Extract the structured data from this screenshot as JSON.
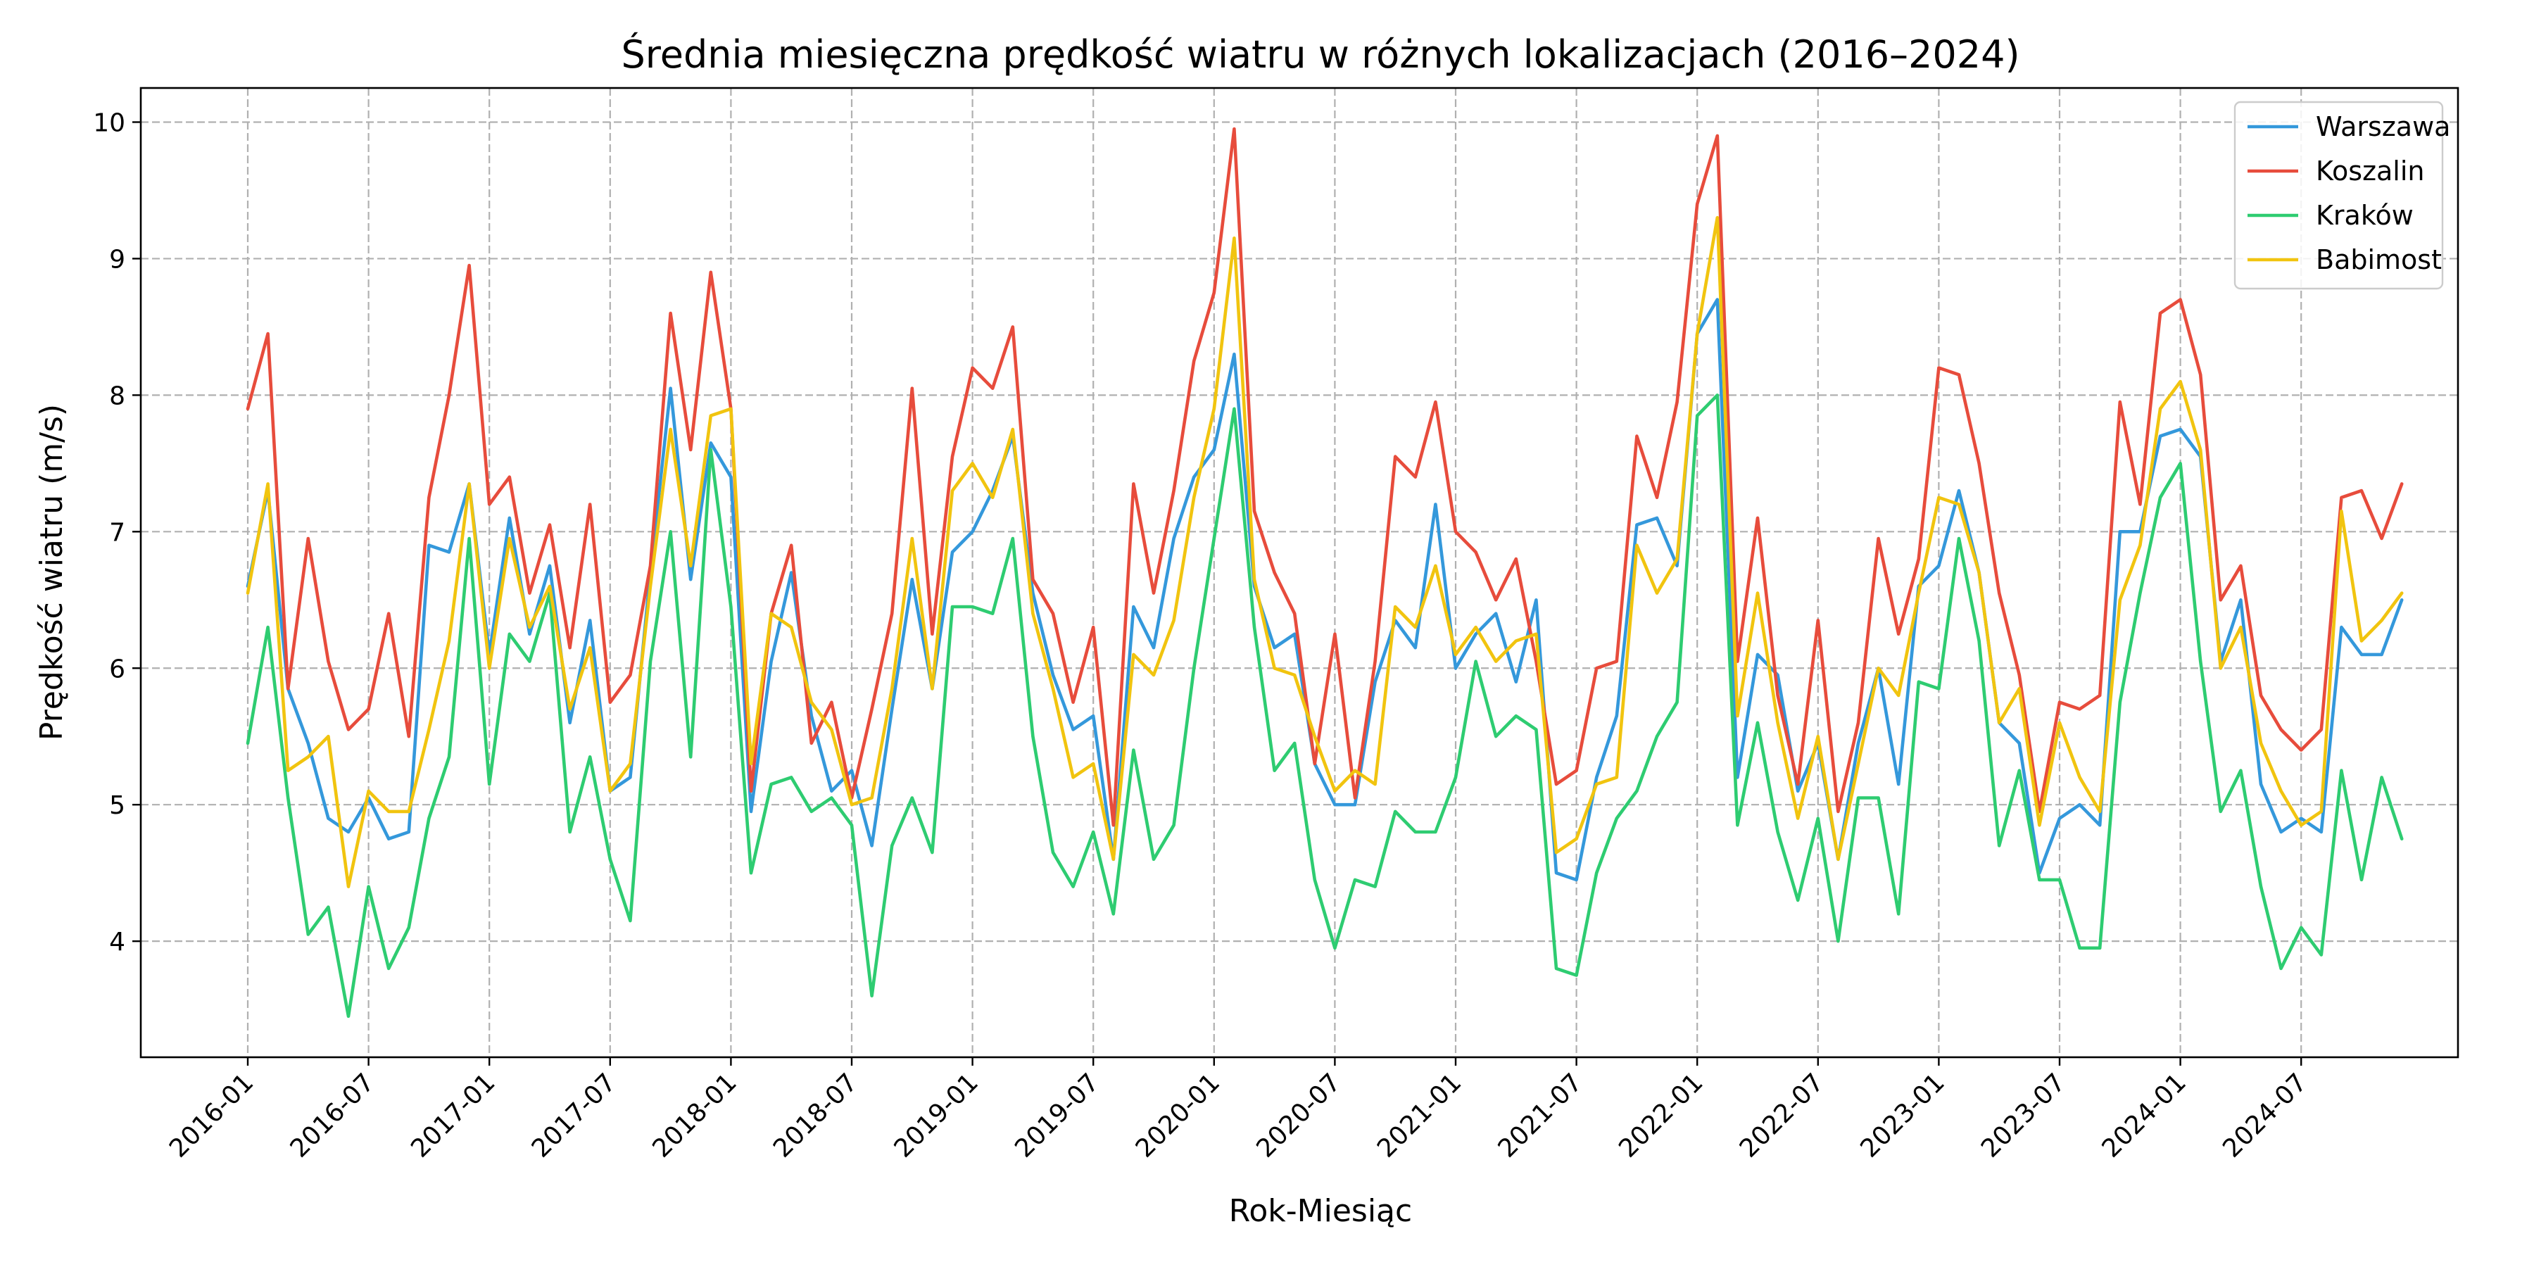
{
  "chart_data": {
    "type": "line",
    "title": "Średnia miesięczna prędkość wiatru w różnych lokalizacjach (2016–2024)",
    "xlabel": "Rok-Miesiąc",
    "ylabel": "Prędkość wiatru (m/s)",
    "x_start": "2016-01",
    "x_ticks": [
      "2016-01",
      "2016-07",
      "2017-01",
      "2017-07",
      "2018-01",
      "2018-07",
      "2019-01",
      "2019-07",
      "2020-01",
      "2020-07",
      "2021-01",
      "2021-07",
      "2022-01",
      "2022-07",
      "2023-01",
      "2023-07",
      "2024-01",
      "2024-07"
    ],
    "y_ticks": [
      4,
      5,
      6,
      7,
      8,
      9,
      10
    ],
    "ylim": [
      3.15,
      10.25
    ],
    "grid": true,
    "legend_position": "top-right",
    "series": [
      {
        "name": "Warszawa",
        "color": "#3498db",
        "values": [
          6.6,
          7.3,
          5.85,
          5.45,
          4.9,
          4.8,
          5.05,
          4.75,
          4.8,
          6.9,
          6.85,
          7.35,
          6.1,
          7.1,
          6.25,
          6.75,
          5.6,
          6.35,
          5.1,
          5.2,
          6.7,
          8.05,
          6.65,
          7.65,
          7.4,
          4.95,
          6.05,
          6.7,
          5.65,
          5.1,
          5.25,
          4.7,
          5.7,
          6.65,
          5.85,
          6.85,
          7.0,
          7.3,
          7.7,
          6.55,
          5.95,
          5.55,
          5.65,
          4.6,
          6.45,
          6.15,
          6.95,
          7.4,
          7.6,
          8.3,
          6.6,
          6.15,
          6.25,
          5.3,
          5.0,
          5.0,
          5.9,
          6.35,
          6.15,
          7.2,
          6.0,
          6.25,
          6.4,
          5.9,
          6.5,
          4.5,
          4.45,
          5.2,
          5.65,
          7.05,
          7.1,
          6.75,
          8.45,
          8.7,
          5.2,
          6.1,
          5.95,
          5.1,
          5.45,
          4.6,
          5.45,
          6.0,
          5.15,
          6.6,
          6.75,
          7.3,
          6.7,
          5.6,
          5.45,
          4.5,
          4.9,
          5.0,
          4.85,
          7.0,
          7.0,
          7.7,
          7.75,
          7.55,
          6.05,
          6.5,
          5.15,
          4.8,
          4.9,
          4.8,
          6.3,
          6.1,
          6.1,
          6.5
        ]
      },
      {
        "name": "Koszalin",
        "color": "#e74c3c",
        "values": [
          7.9,
          8.45,
          5.85,
          6.95,
          6.05,
          5.55,
          5.7,
          6.4,
          5.5,
          7.25,
          8.0,
          8.95,
          7.2,
          7.4,
          6.55,
          7.05,
          6.15,
          7.2,
          5.75,
          5.95,
          6.75,
          8.6,
          7.6,
          8.9,
          7.9,
          5.1,
          6.4,
          6.9,
          5.45,
          5.75,
          5.05,
          5.7,
          6.4,
          8.05,
          6.25,
          7.55,
          8.2,
          8.05,
          8.5,
          6.65,
          6.4,
          5.75,
          6.3,
          4.85,
          7.35,
          6.55,
          7.3,
          8.25,
          8.75,
          9.95,
          7.15,
          6.7,
          6.4,
          5.3,
          6.25,
          5.05,
          6.05,
          7.55,
          7.4,
          7.95,
          7.0,
          6.85,
          6.5,
          6.8,
          6.05,
          5.15,
          5.25,
          6.0,
          6.05,
          7.7,
          7.25,
          7.95,
          9.4,
          9.9,
          6.05,
          7.1,
          5.8,
          5.15,
          6.35,
          4.95,
          5.6,
          6.95,
          6.25,
          6.8,
          8.2,
          8.15,
          7.5,
          6.55,
          5.95,
          4.95,
          5.75,
          5.7,
          5.8,
          7.95,
          7.2,
          8.6,
          8.7,
          8.15,
          6.5,
          6.75,
          5.8,
          5.55,
          5.4,
          5.55,
          7.25,
          7.3,
          6.95,
          7.35
        ]
      },
      {
        "name": "Kraków",
        "color": "#2ecc71",
        "values": [
          5.45,
          6.3,
          5.05,
          4.05,
          4.25,
          3.45,
          4.4,
          3.8,
          4.1,
          4.9,
          5.35,
          6.95,
          5.15,
          6.25,
          6.05,
          6.55,
          4.8,
          5.35,
          4.6,
          4.15,
          6.05,
          7.0,
          5.35,
          7.6,
          6.45,
          4.5,
          5.15,
          5.2,
          4.95,
          5.05,
          4.85,
          3.6,
          4.7,
          5.05,
          4.65,
          6.45,
          6.45,
          6.4,
          6.95,
          5.5,
          4.65,
          4.4,
          4.8,
          4.2,
          5.4,
          4.6,
          4.85,
          6.0,
          6.95,
          7.9,
          6.3,
          5.25,
          5.45,
          4.45,
          3.95,
          4.45,
          4.4,
          4.95,
          4.8,
          4.8,
          5.2,
          6.05,
          5.5,
          5.65,
          5.55,
          3.8,
          3.75,
          4.5,
          4.9,
          5.1,
          5.5,
          5.75,
          7.85,
          8.0,
          4.85,
          5.6,
          4.8,
          4.3,
          4.9,
          4.0,
          5.05,
          5.05,
          4.2,
          5.9,
          5.85,
          6.95,
          6.2,
          4.7,
          5.25,
          4.45,
          4.45,
          3.95,
          3.95,
          5.75,
          6.55,
          7.25,
          7.5,
          6.05,
          4.95,
          5.25,
          4.4,
          3.8,
          4.1,
          3.9,
          5.25,
          4.45,
          5.2,
          4.75
        ]
      },
      {
        "name": "Babimost",
        "color": "#f1c40f",
        "values": [
          6.55,
          7.35,
          5.25,
          5.35,
          5.5,
          4.4,
          5.1,
          4.95,
          4.95,
          5.55,
          6.2,
          7.35,
          6.0,
          6.95,
          6.3,
          6.6,
          5.7,
          6.15,
          5.1,
          5.3,
          6.6,
          7.75,
          6.75,
          7.85,
          7.9,
          5.3,
          6.4,
          6.3,
          5.75,
          5.55,
          5.0,
          5.05,
          5.85,
          6.95,
          5.85,
          7.3,
          7.5,
          7.25,
          7.75,
          6.4,
          5.85,
          5.2,
          5.3,
          4.6,
          6.1,
          5.95,
          6.35,
          7.25,
          7.9,
          9.15,
          6.65,
          6.0,
          5.95,
          5.5,
          5.1,
          5.25,
          5.15,
          6.45,
          6.3,
          6.75,
          6.1,
          6.3,
          6.05,
          6.2,
          6.25,
          4.65,
          4.75,
          5.15,
          5.2,
          6.9,
          6.55,
          6.8,
          8.45,
          9.3,
          5.65,
          6.55,
          5.6,
          4.9,
          5.5,
          4.6,
          5.3,
          6.0,
          5.8,
          6.55,
          7.25,
          7.2,
          6.7,
          5.6,
          5.85,
          4.85,
          5.6,
          5.2,
          4.95,
          6.5,
          6.9,
          7.9,
          8.1,
          7.6,
          6.0,
          6.3,
          5.45,
          5.1,
          4.85,
          4.95,
          7.15,
          6.2,
          6.35,
          6.55
        ]
      }
    ]
  }
}
